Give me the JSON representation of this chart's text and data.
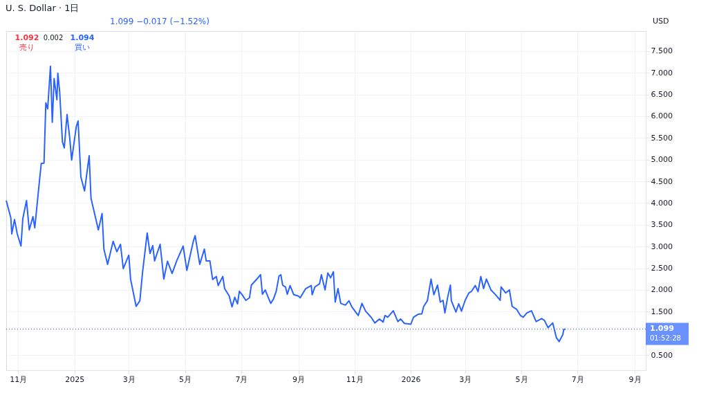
{
  "chart_data": {
    "type": "line",
    "title": "U. S. Dollar · 1日",
    "annotations": [
      "1.099 −0.017 (−1.52%)",
      "1.092 売り",
      "0.002",
      "1.094 買い",
      "USD",
      "01:52:28"
    ],
    "x": [
      "2024-10-19",
      "2024-10-24",
      "2024-10-25",
      "2024-10-28",
      "2024-10-31",
      "2024-11-04",
      "2024-11-06",
      "2024-11-10",
      "2024-11-13",
      "2024-11-17",
      "2024-11-19",
      "2024-11-24",
      "2024-11-26",
      "2024-11-29",
      "2024-12-01",
      "2024-12-03",
      "2024-12-06",
      "2024-12-08",
      "2024-12-10",
      "2024-12-13",
      "2024-12-14",
      "2024-12-16",
      "2024-12-19",
      "2024-12-21",
      "2024-12-24",
      "2024-12-27",
      "2024-12-29",
      "2025-01-03",
      "2025-01-05",
      "2025-01-08",
      "2025-01-12",
      "2025-01-17",
      "2025-01-19",
      "2025-01-27",
      "2025-01-31",
      "2025-02-02",
      "2025-02-06",
      "2025-02-12",
      "2025-02-16",
      "2025-02-20",
      "2025-02-23",
      "2025-03-01",
      "2025-03-03",
      "2025-03-09",
      "2025-03-13",
      "2025-03-16",
      "2025-03-21",
      "2025-03-24",
      "2025-03-27",
      "2025-03-29",
      "2025-04-04",
      "2025-04-08",
      "2025-04-12",
      "2025-04-17",
      "2025-04-22",
      "2025-04-29",
      "2025-05-03",
      "2025-05-10",
      "2025-05-12",
      "2025-05-17",
      "2025-05-22",
      "2025-05-24",
      "2025-05-28",
      "2025-05-31",
      "2025-06-04",
      "2025-06-06",
      "2025-06-11",
      "2025-06-13",
      "2025-06-18",
      "2025-06-21",
      "2025-06-24",
      "2025-06-27",
      "2025-06-29",
      "2025-07-02",
      "2025-07-06",
      "2025-07-10",
      "2025-07-12",
      "2025-07-18",
      "2025-07-22",
      "2025-07-24",
      "2025-07-27",
      "2025-08-02",
      "2025-08-05",
      "2025-08-08",
      "2025-08-11",
      "2025-08-13",
      "2025-08-15",
      "2025-08-18",
      "2025-08-20",
      "2025-08-23",
      "2025-08-27",
      "2025-09-01",
      "2025-09-03",
      "2025-09-09",
      "2025-09-15",
      "2025-09-16",
      "2025-09-19",
      "2025-09-24",
      "2025-09-26",
      "2025-09-30",
      "2025-10-03",
      "2025-10-06",
      "2025-10-09",
      "2025-10-11",
      "2025-10-14",
      "2025-10-17",
      "2025-10-22",
      "2025-10-26",
      "2025-10-29",
      "2025-11-05",
      "2025-11-09",
      "2025-11-13",
      "2025-11-19",
      "2025-11-23",
      "2025-11-28",
      "2025-12-02",
      "2025-12-04",
      "2025-12-07",
      "2025-12-13",
      "2025-12-18",
      "2025-12-21",
      "2025-12-25",
      "2026-01-01",
      "2026-01-04",
      "2026-01-09",
      "2026-01-13",
      "2026-01-15",
      "2026-01-19",
      "2026-01-23",
      "2026-01-26",
      "2026-01-30",
      "2026-02-02",
      "2026-02-05",
      "2026-02-07",
      "2026-02-10",
      "2026-02-13",
      "2026-02-14",
      "2026-02-19",
      "2026-02-22",
      "2026-02-25",
      "2026-03-01",
      "2026-03-05",
      "2026-03-08",
      "2026-03-12",
      "2026-03-15",
      "2026-03-18",
      "2026-03-21",
      "2026-03-24",
      "2026-03-29",
      "2026-04-03",
      "2026-04-08",
      "2026-04-09",
      "2026-04-14",
      "2026-04-18",
      "2026-04-21",
      "2026-04-26",
      "2026-04-30",
      "2026-05-03",
      "2026-05-07",
      "2026-05-12",
      "2026-05-17",
      "2026-05-23",
      "2026-05-26",
      "2026-05-30",
      "2026-06-04",
      "2026-06-08",
      "2026-06-11",
      "2026-06-15",
      "2026-06-16",
      "2026-06-18"
    ],
    "series": [
      {
        "color": "#2962ff",
        "values": [
          4.06,
          3.66,
          3.29,
          3.62,
          3.29,
          3.01,
          3.64,
          4.06,
          3.38,
          3.69,
          3.43,
          4.5,
          4.91,
          4.92,
          6.31,
          6.17,
          7.15,
          5.86,
          6.87,
          6.38,
          6.99,
          6.56,
          5.41,
          5.27,
          6.04,
          5.48,
          4.99,
          5.76,
          5.89,
          4.6,
          4.28,
          5.09,
          4.11,
          3.38,
          3.76,
          2.94,
          2.59,
          3.12,
          2.88,
          3.05,
          2.49,
          2.8,
          2.24,
          1.62,
          1.75,
          2.42,
          3.31,
          2.84,
          3.02,
          2.67,
          3.05,
          2.25,
          2.66,
          2.38,
          2.67,
          3.01,
          2.45,
          3.12,
          3.25,
          2.59,
          2.94,
          2.67,
          2.67,
          2.24,
          2.31,
          2.1,
          2.31,
          2.03,
          1.86,
          1.61,
          1.83,
          1.68,
          1.97,
          1.89,
          1.76,
          1.82,
          2.11,
          2.25,
          2.35,
          1.9,
          2.0,
          1.69,
          1.79,
          1.97,
          2.32,
          2.35,
          2.11,
          2.07,
          1.9,
          2.1,
          1.89,
          1.86,
          1.82,
          2.03,
          2.1,
          1.89,
          2.07,
          2.14,
          2.35,
          2.0,
          2.39,
          2.28,
          2.42,
          1.72,
          2.03,
          1.69,
          1.65,
          1.75,
          1.61,
          1.41,
          1.69,
          1.51,
          1.37,
          1.24,
          1.33,
          1.26,
          1.41,
          1.37,
          1.52,
          1.27,
          1.33,
          1.23,
          1.21,
          1.37,
          1.44,
          1.45,
          1.62,
          1.75,
          2.25,
          1.89,
          2.11,
          1.72,
          1.76,
          1.47,
          1.83,
          2.11,
          1.75,
          1.49,
          1.68,
          1.51,
          1.76,
          1.93,
          1.97,
          2.1,
          1.96,
          2.31,
          2.03,
          2.25,
          2.0,
          1.89,
          1.76,
          2.07,
          1.93,
          2.0,
          1.62,
          1.55,
          1.41,
          1.37,
          1.47,
          1.52,
          1.27,
          1.34,
          1.3,
          1.13,
          1.24,
          0.9,
          0.81,
          0.97,
          1.09,
          1.099
        ]
      }
    ],
    "xlim": [
      "2024-10-19",
      "2026-09-13"
    ],
    "xticks": [
      {
        "value": "2024-11-01",
        "label": "11月"
      },
      {
        "value": "2025-01-01",
        "label": "2025"
      },
      {
        "value": "2025-03-01",
        "label": "3月"
      },
      {
        "value": "2025-05-01",
        "label": "5月"
      },
      {
        "value": "2025-07-01",
        "label": "7月"
      },
      {
        "value": "2025-09-01",
        "label": "9月"
      },
      {
        "value": "2025-11-01",
        "label": "11月"
      },
      {
        "value": "2026-01-01",
        "label": "2026"
      },
      {
        "value": "2026-03-01",
        "label": "3月"
      },
      {
        "value": "2026-05-01",
        "label": "5月"
      },
      {
        "value": "2026-07-01",
        "label": "7月"
      },
      {
        "value": "2026-09-01",
        "label": "9月"
      }
    ],
    "ylim": [
      0.15,
      7.96
    ],
    "yticks": [
      {
        "value": 0.5,
        "label": "0.500"
      },
      {
        "value": 1.5,
        "label": "1.500"
      },
      {
        "value": 2,
        "label": "2.000"
      },
      {
        "value": 2.5,
        "label": "2.500"
      },
      {
        "value": 3,
        "label": "3.000"
      },
      {
        "value": 3.5,
        "label": "3.500"
      },
      {
        "value": 4,
        "label": "4.000"
      },
      {
        "value": 4.5,
        "label": "4.500"
      },
      {
        "value": 5,
        "label": "5.000"
      },
      {
        "value": 5.5,
        "label": "5.500"
      },
      {
        "value": 6,
        "label": "6.000"
      },
      {
        "value": 6.5,
        "label": "6.500"
      },
      {
        "value": 7,
        "label": "7.000"
      },
      {
        "value": 7.5,
        "label": "7.500"
      }
    ],
    "ref_lines": [
      {
        "axis": "y",
        "value": 1.099,
        "label": "1.099",
        "color": "#2962ff",
        "line_style": "dotted"
      }
    ],
    "grid": true,
    "marker": "none",
    "line_style": "solid"
  }
}
